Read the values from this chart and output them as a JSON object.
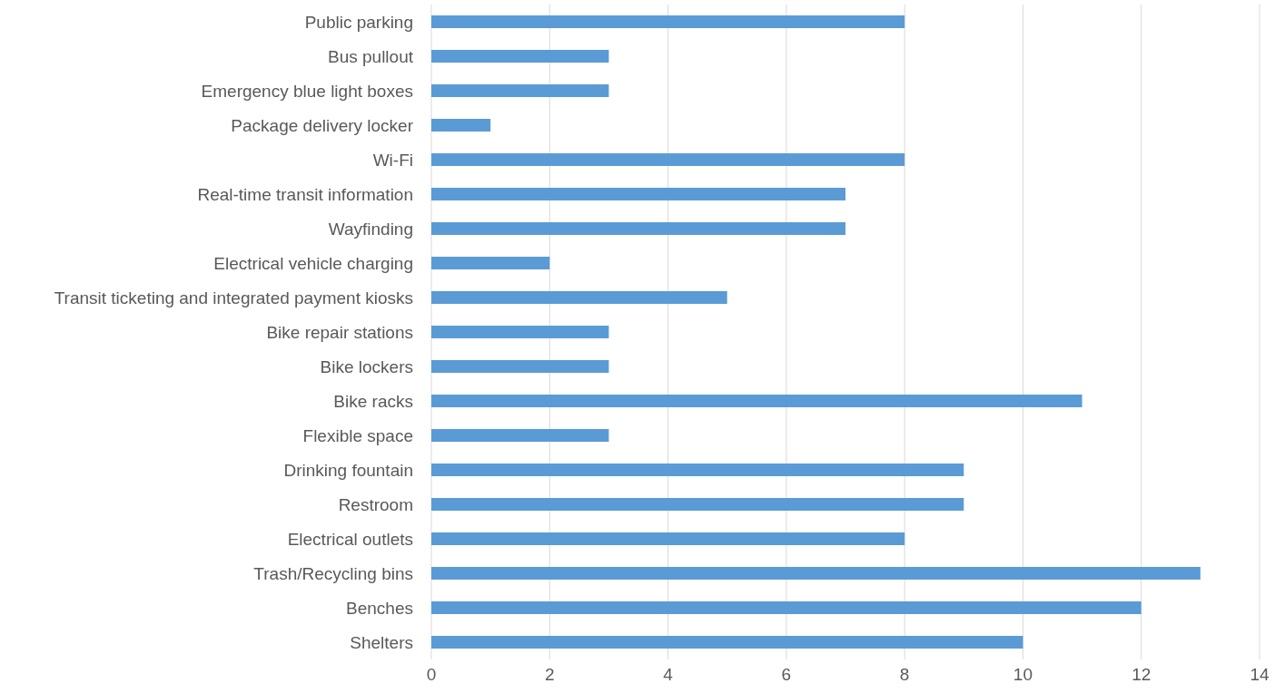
{
  "chart_data": {
    "type": "bar",
    "orientation": "horizontal",
    "categories": [
      "Public parking",
      "Bus pullout",
      "Emergency blue light boxes",
      "Package delivery locker",
      "Wi-Fi",
      "Real-time transit information",
      "Wayfinding",
      "Electrical vehicle charging",
      "Transit ticketing and integrated payment kiosks",
      "Bike repair stations",
      "Bike lockers",
      "Bike racks",
      "Flexible space",
      "Drinking fountain",
      "Restroom",
      "Electrical outlets",
      "Trash/Recycling bins",
      "Benches",
      "Shelters"
    ],
    "values": [
      8,
      3,
      3,
      1,
      8,
      7,
      7,
      2,
      5,
      3,
      3,
      11,
      3,
      9,
      9,
      8,
      13,
      12,
      10
    ],
    "color": "#5b9bd5",
    "xlim": [
      0,
      14
    ],
    "xticks": [
      0,
      2,
      4,
      6,
      8,
      10,
      12,
      14
    ],
    "grid": "x"
  }
}
